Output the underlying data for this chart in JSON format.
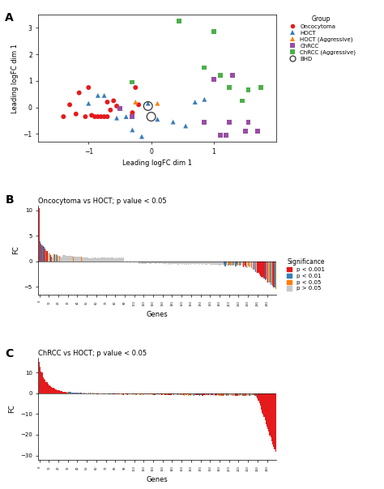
{
  "panel_a": {
    "xlabel": "Leading logFC dim 1",
    "ylabel": "Leading logFC dim 1",
    "xlim": [
      -1.8,
      2.0
    ],
    "ylim": [
      -1.3,
      3.5
    ],
    "xticks": [
      -1,
      0,
      1
    ],
    "yticks": [
      -1,
      0,
      1,
      2,
      3
    ],
    "groups": {
      "Oncocytoma": {
        "color": "#E41A1C",
        "marker": "o",
        "x": [
          -1.4,
          -1.3,
          -1.2,
          -1.15,
          -1.05,
          -1.0,
          -0.95,
          -0.9,
          -0.85,
          -0.8,
          -0.75,
          -0.7,
          -0.7,
          -0.65,
          -0.6,
          -0.55,
          -0.3,
          -0.25,
          -0.2
        ],
        "y": [
          -0.35,
          0.1,
          -0.25,
          0.55,
          -0.35,
          0.75,
          -0.3,
          -0.35,
          -0.35,
          -0.35,
          -0.35,
          -0.35,
          0.2,
          -0.1,
          0.25,
          0.05,
          -0.2,
          0.75,
          0.1
        ]
      },
      "HOCT": {
        "color": "#377EB8",
        "marker": "^",
        "x": [
          -1.0,
          -0.85,
          -0.75,
          -0.55,
          -0.4,
          -0.3,
          -0.15,
          -0.05,
          0.1,
          0.35,
          0.55,
          0.7,
          0.85
        ],
        "y": [
          0.15,
          0.45,
          0.45,
          -0.4,
          -0.35,
          -0.85,
          -1.1,
          0.15,
          -0.45,
          -0.55,
          -0.7,
          0.2,
          0.3
        ]
      },
      "HOCT (Aggressive)": {
        "color": "#FF7F00",
        "marker": "^",
        "x": [
          -0.25,
          0.1
        ],
        "y": [
          0.2,
          0.15
        ]
      },
      "ChRCC": {
        "color": "#984EA3",
        "marker": "s",
        "x": [
          -0.5,
          -0.3,
          0.85,
          1.0,
          1.1,
          1.2,
          1.25,
          1.3,
          1.5,
          1.55,
          1.7
        ],
        "y": [
          -0.05,
          -0.35,
          -0.55,
          1.05,
          -1.05,
          -1.05,
          -0.55,
          1.2,
          -0.9,
          -0.55,
          -0.9
        ]
      },
      "ChRCC (Aggressive)": {
        "color": "#4DAF4A",
        "marker": "s",
        "x": [
          -0.3,
          0.45,
          0.85,
          1.0,
          1.1,
          1.25,
          1.45,
          1.55,
          1.75
        ],
        "y": [
          0.95,
          3.25,
          1.5,
          2.85,
          1.2,
          0.75,
          0.25,
          0.65,
          0.75
        ]
      }
    },
    "bhd": {
      "x": [
        -0.05,
        0.0
      ],
      "y": [
        0.05,
        -0.35
      ]
    }
  },
  "panel_b": {
    "subtitle": "Oncocytoma vs HOCT; p value < 0.05",
    "xlabel": "Genes",
    "ylabel": "FC",
    "ylim": [
      -6.5,
      11
    ],
    "yticks": [
      -5,
      0,
      5,
      10
    ],
    "n_genes": 250
  },
  "panel_c": {
    "subtitle": "ChRCC vs HOCT; p value < 0.05",
    "xlabel": "Genes",
    "ylabel": "FC",
    "ylim": [
      -32,
      17
    ],
    "yticks": [
      -30,
      -20,
      -10,
      0,
      10
    ],
    "n_genes": 250
  },
  "significance_colors": {
    "p < 0.001": "#E41A1C",
    "p < 0.01": "#377EB8",
    "p < 0.05": "#FF7F00",
    "p > 0.05": "#C8C8C8"
  },
  "background_color": "#FFFFFF"
}
